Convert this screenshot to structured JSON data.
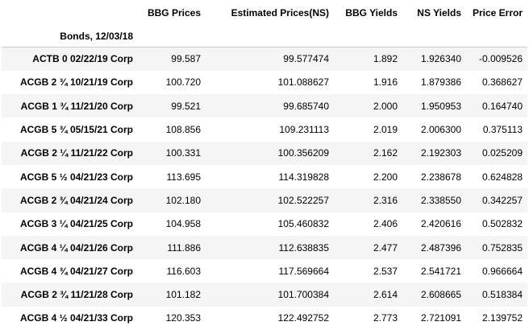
{
  "table": {
    "index_name": "Bonds, 12/03/18",
    "columns": [
      "BBG Prices",
      "Estimated Prices(NS)",
      "BBG Yields",
      "NS Yields",
      "Price Error"
    ],
    "rows": [
      {
        "bond": "ACTB 0 02/22/19 Corp",
        "bbg_price": "99.587",
        "est_price": "99.577474",
        "bbg_yield": "1.892",
        "ns_yield": "1.926340",
        "price_error": "-0.009526"
      },
      {
        "bond": "ACGB 2 ¾ 10/21/19 Corp",
        "bbg_price": "100.720",
        "est_price": "101.088627",
        "bbg_yield": "1.916",
        "ns_yield": "1.879386",
        "price_error": "0.368627"
      },
      {
        "bond": "ACGB 1 ¾ 11/21/20 Corp",
        "bbg_price": "99.521",
        "est_price": "99.685740",
        "bbg_yield": "2.000",
        "ns_yield": "1.950953",
        "price_error": "0.164740"
      },
      {
        "bond": "ACGB 5 ¾ 05/15/21 Corp",
        "bbg_price": "108.856",
        "est_price": "109.231113",
        "bbg_yield": "2.019",
        "ns_yield": "2.006300",
        "price_error": "0.375113"
      },
      {
        "bond": "ACGB 2 ¼ 11/21/22 Corp",
        "bbg_price": "100.331",
        "est_price": "100.356209",
        "bbg_yield": "2.162",
        "ns_yield": "2.192303",
        "price_error": "0.025209"
      },
      {
        "bond": "ACGB 5 ½ 04/21/23 Corp",
        "bbg_price": "113.695",
        "est_price": "114.319828",
        "bbg_yield": "2.200",
        "ns_yield": "2.238678",
        "price_error": "0.624828"
      },
      {
        "bond": "ACGB 2 ¾ 04/21/24 Corp",
        "bbg_price": "102.180",
        "est_price": "102.522257",
        "bbg_yield": "2.316",
        "ns_yield": "2.338550",
        "price_error": "0.342257"
      },
      {
        "bond": "ACGB 3 ¼ 04/21/25 Corp",
        "bbg_price": "104.958",
        "est_price": "105.460832",
        "bbg_yield": "2.406",
        "ns_yield": "2.420616",
        "price_error": "0.502832"
      },
      {
        "bond": "ACGB 4 ¼ 04/21/26 Corp",
        "bbg_price": "111.886",
        "est_price": "112.638835",
        "bbg_yield": "2.477",
        "ns_yield": "2.487396",
        "price_error": "0.752835"
      },
      {
        "bond": "ACGB 4 ¾ 04/21/27 Corp",
        "bbg_price": "116.603",
        "est_price": "117.569664",
        "bbg_yield": "2.537",
        "ns_yield": "2.541721",
        "price_error": "0.966664"
      },
      {
        "bond": "ACGB 2 ¾ 11/21/28 Corp",
        "bbg_price": "101.182",
        "est_price": "101.700384",
        "bbg_yield": "2.614",
        "ns_yield": "2.608665",
        "price_error": "0.518384"
      },
      {
        "bond": "ACGB 4 ½ 04/21/33 Corp",
        "bbg_price": "120.353",
        "est_price": "122.492752",
        "bbg_yield": "2.773",
        "ns_yield": "2.721091",
        "price_error": "2.139752"
      }
    ]
  }
}
